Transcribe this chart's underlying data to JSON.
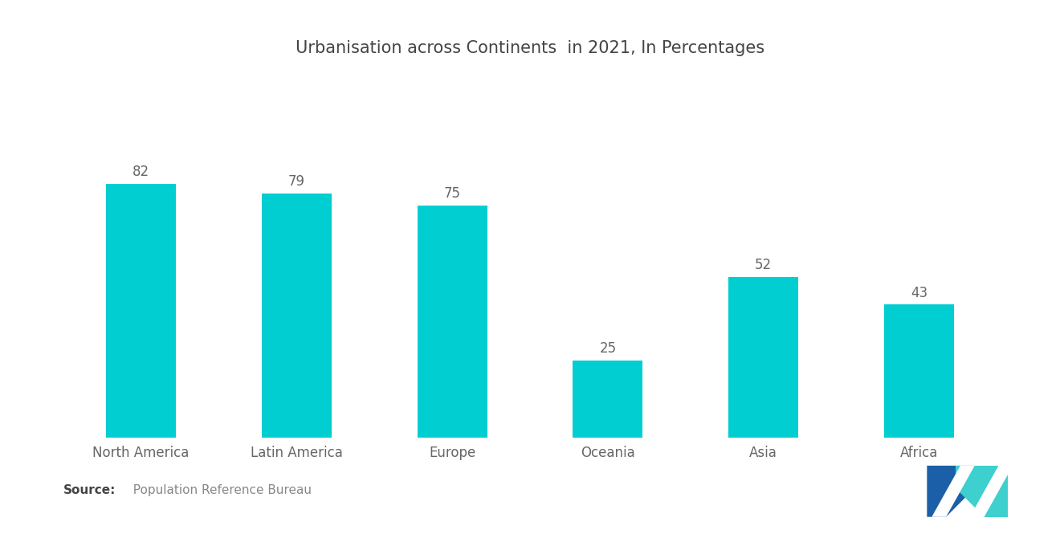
{
  "title": "Urbanisation across Continents  in 2021, In Percentages",
  "categories": [
    "North America",
    "Latin America",
    "Europe",
    "Oceania",
    "Asia",
    "Africa"
  ],
  "values": [
    82,
    79,
    75,
    25,
    52,
    43
  ],
  "bar_color": "#00CED1",
  "value_color": "#666666",
  "label_color": "#666666",
  "title_color": "#444444",
  "background_color": "#FFFFFF",
  "source_bold": "Source:",
  "source_text": "  Population Reference Bureau",
  "title_fontsize": 15,
  "label_fontsize": 12,
  "value_fontsize": 12,
  "source_fontsize": 11,
  "bar_width": 0.45,
  "ylim": [
    0,
    100
  ]
}
